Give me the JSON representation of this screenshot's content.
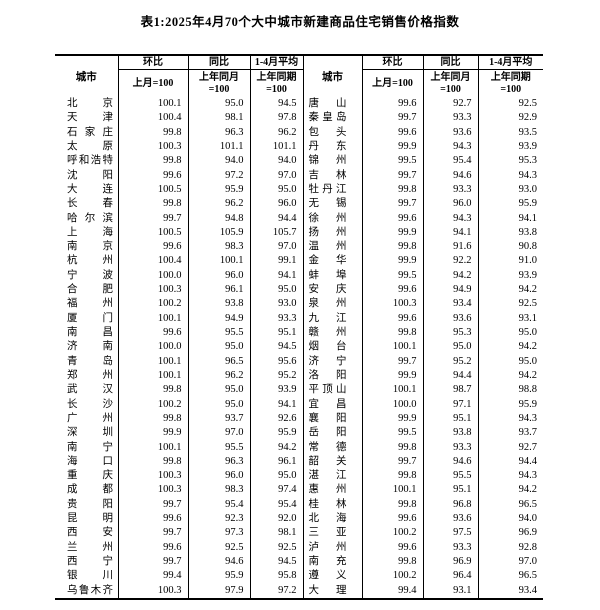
{
  "page": {
    "title": "表1:2025年4月70个大中城市新建商品住宅销售价格指数"
  },
  "table": {
    "header": {
      "city": "城市",
      "mom_label": "环比",
      "mom_base": "上月=100",
      "yoy_label": "同比",
      "yoy_base": "上年同月\n=100",
      "avg_label": "1-4月平均",
      "avg_base": "上年同期\n=100"
    },
    "left_rows": [
      [
        "北京",
        "100.1",
        "95.0",
        "94.5"
      ],
      [
        "天津",
        "100.4",
        "98.1",
        "97.8"
      ],
      [
        "石家庄",
        "99.8",
        "96.3",
        "96.2"
      ],
      [
        "太原",
        "100.3",
        "101.1",
        "101.1"
      ],
      [
        "呼和浩特",
        "99.8",
        "94.0",
        "94.0"
      ],
      [
        "沈阳",
        "99.6",
        "97.2",
        "97.0"
      ],
      [
        "大连",
        "100.5",
        "95.9",
        "95.0"
      ],
      [
        "长春",
        "99.8",
        "96.2",
        "96.0"
      ],
      [
        "哈尔滨",
        "99.7",
        "94.8",
        "94.4"
      ],
      [
        "上海",
        "100.5",
        "105.9",
        "105.7"
      ],
      [
        "南京",
        "99.6",
        "98.3",
        "97.0"
      ],
      [
        "杭州",
        "100.4",
        "100.1",
        "99.1"
      ],
      [
        "宁波",
        "100.0",
        "96.0",
        "94.1"
      ],
      [
        "合肥",
        "100.3",
        "96.1",
        "95.0"
      ],
      [
        "福州",
        "100.2",
        "93.8",
        "93.0"
      ],
      [
        "厦门",
        "100.1",
        "94.9",
        "93.3"
      ],
      [
        "南昌",
        "99.6",
        "95.5",
        "95.1"
      ],
      [
        "济南",
        "100.0",
        "95.0",
        "94.5"
      ],
      [
        "青岛",
        "100.1",
        "96.5",
        "95.6"
      ],
      [
        "郑州",
        "100.1",
        "96.2",
        "95.2"
      ],
      [
        "武汉",
        "99.8",
        "95.0",
        "93.9"
      ],
      [
        "长沙",
        "100.2",
        "95.0",
        "94.1"
      ],
      [
        "广州",
        "99.8",
        "93.7",
        "92.6"
      ],
      [
        "深圳",
        "99.9",
        "97.0",
        "95.9"
      ],
      [
        "南宁",
        "100.1",
        "95.5",
        "94.2"
      ],
      [
        "海口",
        "99.8",
        "96.3",
        "96.1"
      ],
      [
        "重庆",
        "100.3",
        "96.0",
        "95.0"
      ],
      [
        "成都",
        "100.3",
        "98.3",
        "97.4"
      ],
      [
        "贵阳",
        "99.7",
        "95.4",
        "95.4"
      ],
      [
        "昆明",
        "99.6",
        "92.3",
        "92.0"
      ],
      [
        "西安",
        "99.7",
        "97.3",
        "98.1"
      ],
      [
        "兰州",
        "99.6",
        "92.5",
        "92.5"
      ],
      [
        "西宁",
        "99.7",
        "94.6",
        "94.5"
      ],
      [
        "银川",
        "99.4",
        "95.9",
        "95.8"
      ],
      [
        "乌鲁木齐",
        "100.3",
        "97.9",
        "97.2"
      ]
    ],
    "right_rows": [
      [
        "唐山",
        "99.6",
        "92.7",
        "92.5"
      ],
      [
        "秦皇岛",
        "99.7",
        "93.3",
        "92.9"
      ],
      [
        "包头",
        "99.6",
        "93.6",
        "93.5"
      ],
      [
        "丹东",
        "99.9",
        "94.3",
        "93.9"
      ],
      [
        "锦州",
        "99.5",
        "95.4",
        "95.3"
      ],
      [
        "吉林",
        "99.7",
        "94.6",
        "94.3"
      ],
      [
        "牡丹江",
        "99.8",
        "93.3",
        "93.0"
      ],
      [
        "无锡",
        "99.7",
        "96.0",
        "95.9"
      ],
      [
        "徐州",
        "99.6",
        "94.3",
        "94.1"
      ],
      [
        "扬州",
        "99.9",
        "94.1",
        "93.8"
      ],
      [
        "温州",
        "99.8",
        "91.6",
        "90.8"
      ],
      [
        "金华",
        "99.9",
        "92.2",
        "91.0"
      ],
      [
        "蚌埠",
        "99.5",
        "94.2",
        "93.9"
      ],
      [
        "安庆",
        "99.6",
        "94.9",
        "94.2"
      ],
      [
        "泉州",
        "100.3",
        "93.4",
        "92.5"
      ],
      [
        "九江",
        "99.6",
        "93.6",
        "93.1"
      ],
      [
        "赣州",
        "99.8",
        "95.3",
        "95.0"
      ],
      [
        "烟台",
        "100.1",
        "95.0",
        "94.2"
      ],
      [
        "济宁",
        "99.7",
        "95.2",
        "95.0"
      ],
      [
        "洛阳",
        "99.9",
        "94.4",
        "94.2"
      ],
      [
        "平顶山",
        "100.1",
        "98.7",
        "98.8"
      ],
      [
        "宜昌",
        "100.0",
        "97.1",
        "95.9"
      ],
      [
        "襄阳",
        "99.9",
        "95.1",
        "94.3"
      ],
      [
        "岳阳",
        "99.5",
        "93.8",
        "93.7"
      ],
      [
        "常德",
        "99.8",
        "93.3",
        "92.7"
      ],
      [
        "韶关",
        "99.7",
        "94.6",
        "94.4"
      ],
      [
        "湛江",
        "99.8",
        "95.5",
        "94.3"
      ],
      [
        "惠州",
        "100.1",
        "95.1",
        "94.2"
      ],
      [
        "桂林",
        "99.8",
        "96.8",
        "96.5"
      ],
      [
        "北海",
        "99.6",
        "93.6",
        "94.0"
      ],
      [
        "三亚",
        "100.2",
        "97.5",
        "96.9"
      ],
      [
        "泸州",
        "99.6",
        "93.3",
        "92.8"
      ],
      [
        "南充",
        "99.8",
        "96.9",
        "97.0"
      ],
      [
        "遵义",
        "100.2",
        "96.4",
        "96.5"
      ],
      [
        "大理",
        "99.4",
        "93.1",
        "93.4"
      ]
    ]
  }
}
